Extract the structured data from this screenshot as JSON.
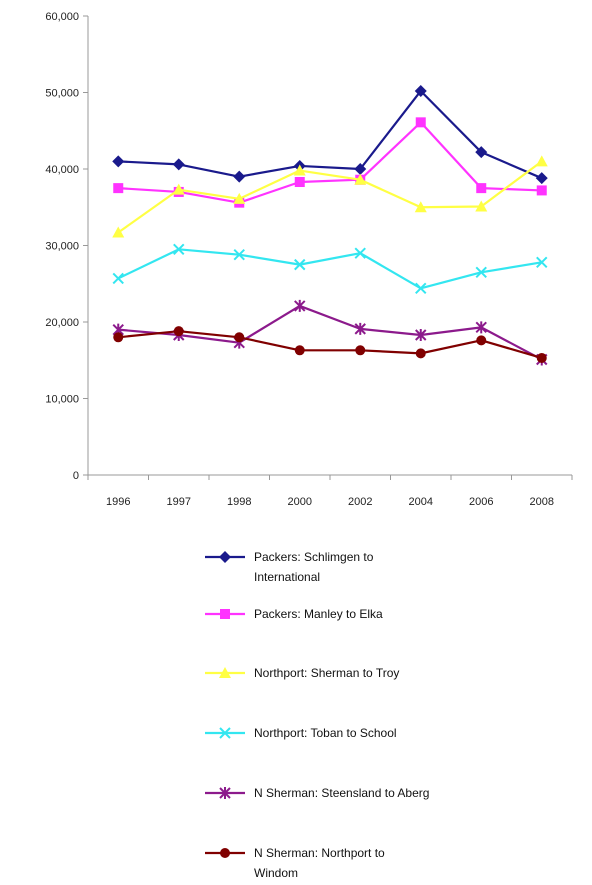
{
  "chart_data": {
    "type": "line",
    "categories": [
      "1996",
      "1997",
      "1998",
      "2000",
      "2002",
      "2004",
      "2006",
      "2008"
    ],
    "ylim": [
      0,
      60000
    ],
    "yticks": [
      0,
      10000,
      20000,
      30000,
      40000,
      50000,
      60000
    ],
    "ytick_labels": [
      "0",
      "10,000",
      "20,000",
      "30,000",
      "40,000",
      "50,000",
      "60,000"
    ],
    "grid": false,
    "legend_position": "bottom",
    "series": [
      {
        "name": "Packers: Schlimgen to International",
        "legend_lines": [
          "Packers: Schlimgen to",
          "International"
        ],
        "color": "#1a1a8c",
        "marker": "diamond",
        "values": [
          41000,
          40600,
          39000,
          40400,
          40000,
          50200,
          42200,
          38800
        ]
      },
      {
        "name": "Packers: Manley to Elka",
        "legend_lines": [
          "Packers: Manley to Elka"
        ],
        "color": "#ff33ff",
        "marker": "square",
        "values": [
          37500,
          37000,
          35600,
          38300,
          38600,
          46100,
          37500,
          37200
        ]
      },
      {
        "name": "Northport: Sherman to Troy",
        "legend_lines": [
          "Northport: Sherman to Troy"
        ],
        "color": "#ffff44",
        "marker": "triangle",
        "values": [
          31700,
          37300,
          36100,
          39800,
          38600,
          35000,
          35100,
          41000
        ]
      },
      {
        "name": "Northport: Toban to School",
        "legend_lines": [
          "Northport: Toban to School"
        ],
        "color": "#33e6f0",
        "marker": "x",
        "values": [
          25700,
          29500,
          28800,
          27500,
          29000,
          24400,
          26500,
          27800
        ]
      },
      {
        "name": "N Sherman: Steensland to Aberg",
        "legend_lines": [
          "N Sherman: Steensland to Aberg"
        ],
        "color": "#8c1a8c",
        "marker": "star",
        "values": [
          19000,
          18300,
          17300,
          22100,
          19100,
          18300,
          19300,
          15100
        ]
      },
      {
        "name": "N Sherman: Northport to Windom",
        "legend_lines": [
          "N Sherman: Northport to",
          "Windom"
        ],
        "color": "#800000",
        "marker": "circle",
        "values": [
          18000,
          18800,
          18000,
          16300,
          16300,
          15900,
          17600,
          15300
        ]
      }
    ]
  }
}
